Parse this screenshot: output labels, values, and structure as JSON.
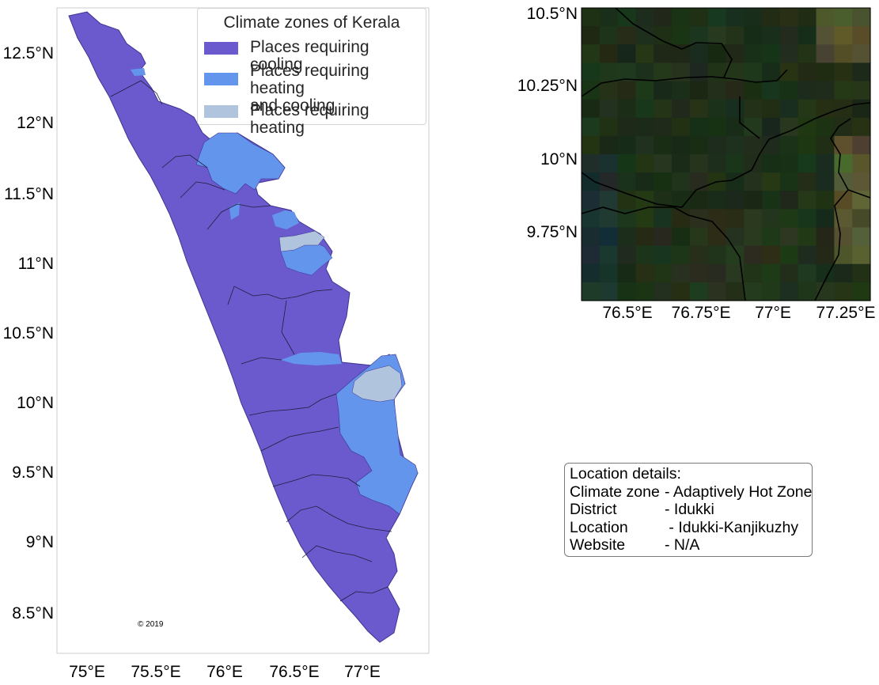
{
  "main_map": {
    "lon_ticks": [
      "75°E",
      "75.5°E",
      "76°E",
      "76.5°E",
      "77°E"
    ],
    "lat_ticks": [
      "12.5°N",
      "12°N",
      "11.5°N",
      "11°N",
      "10.5°N",
      "10°N",
      "9.5°N",
      "9°N",
      "8.5°N"
    ],
    "copyright": "© 2019",
    "legend": {
      "title": "Climate zones of Kerala",
      "items": [
        {
          "label": "Places requiring cooling",
          "color": "#6a5acd"
        },
        {
          "label": "Places requiring heating\n and cooling",
          "color": "#6495ed"
        },
        {
          "label": "Places requiring heating",
          "color": "#b0c4de"
        }
      ]
    }
  },
  "inset_map": {
    "lon_ticks": [
      "76.5°E",
      "76.75°E",
      "77°E",
      "77.25°E"
    ],
    "lat_ticks": [
      "10.5°N",
      "10.25°N",
      "10°N",
      "9.75°N"
    ]
  },
  "location_details": {
    "heading": "Location details:",
    "rows": [
      {
        "key": "Climate zone",
        "value": "- Adaptively Hot Zone"
      },
      {
        "key": "District",
        "value": "- Idukki"
      },
      {
        "key": "Location",
        "value": " - Idukki-Kanjikuzhy"
      },
      {
        "key": "Website",
        "value": "- N/A"
      }
    ]
  }
}
